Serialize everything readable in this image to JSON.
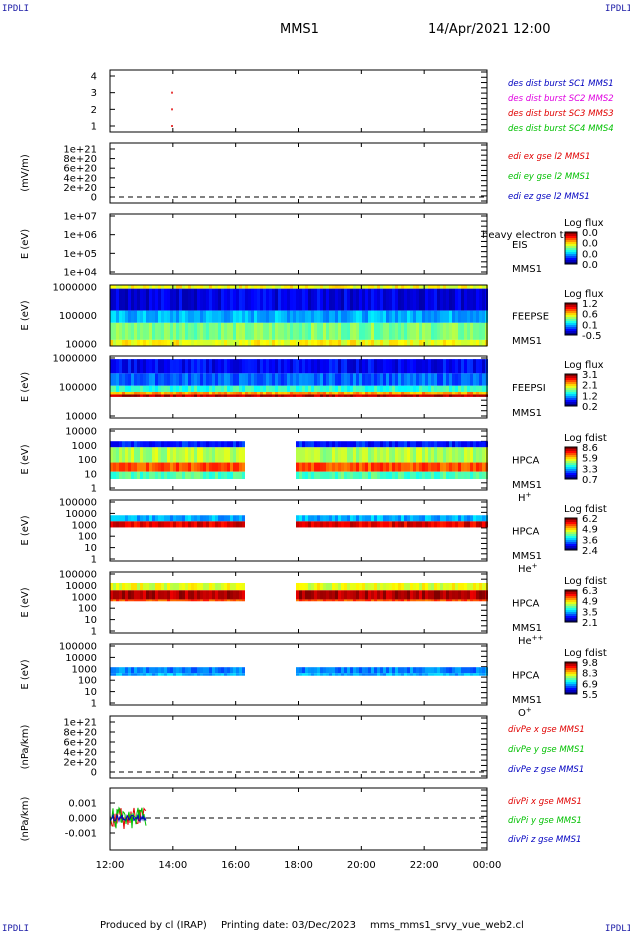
{
  "corners": {
    "tl": "IPDLI",
    "tr": "IPDLI",
    "bl": "IPDLI",
    "br": "IPDLI"
  },
  "header": {
    "spacecraft": "MMS1",
    "datetime": "14/Apr/2021 12:00"
  },
  "footer": {
    "producer": "Produced by cl (IRAP)",
    "print_date": "Printing date: 03/Dec/2023",
    "file": "mms_mms1_srvy_vue_web2.cl"
  },
  "colors": {
    "red": "#e00000",
    "green": "#00c000",
    "blue": "#0000c0",
    "magenta": "#e000e0"
  },
  "chart_data": {
    "type": "heatmap",
    "time_axis": {
      "range": [
        "12:00",
        "00:00"
      ],
      "ticks": [
        "12:00",
        "14:00",
        "16:00",
        "18:00",
        "20:00",
        "22:00",
        "00:00"
      ]
    },
    "panels": [
      {
        "id": "burst",
        "type": "scatter",
        "ylabel": "",
        "ylim": [
          0.5,
          4.5
        ],
        "ticks": [
          "4",
          "3",
          "2",
          "1"
        ],
        "legend": [
          {
            "text": "des dist burst SC1 MMS1",
            "color": "#0000c0"
          },
          {
            "text": "des dist burst SC2 MMS2",
            "color": "#e000e0"
          },
          {
            "text": "des dist burst SC3 MMS3",
            "color": "#e00000"
          },
          {
            "text": "des dist burst SC4 MMS4",
            "color": "#00c000"
          }
        ],
        "points": [
          {
            "t": 1.95,
            "y": 3
          },
          {
            "t": 1.95,
            "y": 2
          },
          {
            "t": 1.95,
            "y": 1
          }
        ]
      },
      {
        "id": "edi",
        "type": "line",
        "ylabel": "(mV/m)",
        "ticks": [
          "1e+21",
          "8e+20",
          "6e+20",
          "4e+20",
          "2e+20",
          "0"
        ],
        "legend": [
          {
            "text": "edi ex gse l2 MMS1",
            "color": "#e00000"
          },
          {
            "text": "edi ey gse l2 MMS1",
            "color": "#00c000"
          },
          {
            "text": "edi ez gse l2 MMS1",
            "color": "#0000c0"
          }
        ]
      },
      {
        "id": "eis",
        "type": "heatmap",
        "ylabel": "E (eV)",
        "ticks": [
          "1e+07",
          "1e+06",
          "1e+05",
          "1e+04"
        ],
        "instrument": "EIS",
        "instrument_note": "heavy electron to",
        "sc": "MMS1",
        "colorbar": {
          "title": "Log flux",
          "values": [
            "0.0",
            "0.0",
            "0.0",
            "0.0"
          ]
        }
      },
      {
        "id": "feepse",
        "type": "heatmap",
        "ylabel": "E (eV)",
        "ticks": [
          "1000000",
          "100000",
          "10000"
        ],
        "instrument": "FEEPSE",
        "sc": "MMS1",
        "colorbar": {
          "title": "Log flux",
          "values": [
            "1.2",
            "0.6",
            "0.1",
            "-0.5"
          ]
        }
      },
      {
        "id": "feepsi",
        "type": "heatmap",
        "ylabel": "E (eV)",
        "ticks": [
          "1000000",
          "100000",
          "10000"
        ],
        "instrument": "FEEPSI",
        "sc": "MMS1",
        "colorbar": {
          "title": "Log flux",
          "values": [
            "3.1",
            "2.1",
            "1.2",
            "0.2"
          ]
        }
      },
      {
        "id": "hpca_h",
        "type": "heatmap",
        "ylabel": "E (eV)",
        "ticks": [
          "10000",
          "1000",
          "100",
          "10",
          "1"
        ],
        "instrument": "HPCA",
        "sc": "MMS1",
        "species": "H",
        "charge": "+",
        "colorbar": {
          "title": "Log fdist",
          "values": [
            "8.6",
            "5.9",
            "3.3",
            "0.7"
          ]
        },
        "data_gap": [
          "16:15",
          "17:50"
        ]
      },
      {
        "id": "hpca_he1",
        "type": "heatmap",
        "ylabel": "E (eV)",
        "ticks": [
          "100000",
          "10000",
          "1000",
          "100",
          "10",
          "1"
        ],
        "instrument": "HPCA",
        "sc": "MMS1",
        "species": "He",
        "charge": "+",
        "colorbar": {
          "title": "Log fdist",
          "values": [
            "6.2",
            "4.9",
            "3.6",
            "2.4"
          ]
        },
        "data_gap": [
          "16:15",
          "17:50"
        ]
      },
      {
        "id": "hpca_he2",
        "type": "heatmap",
        "ylabel": "E (eV)",
        "ticks": [
          "100000",
          "10000",
          "1000",
          "100",
          "10",
          "1"
        ],
        "instrument": "HPCA",
        "sc": "MMS1",
        "species": "He",
        "charge": "++",
        "colorbar": {
          "title": "Log fdist",
          "values": [
            "6.3",
            "4.9",
            "3.5",
            "2.1"
          ]
        },
        "data_gap": [
          "16:15",
          "17:50"
        ]
      },
      {
        "id": "hpca_o",
        "type": "heatmap",
        "ylabel": "E (eV)",
        "ticks": [
          "100000",
          "10000",
          "1000",
          "100",
          "10",
          "1"
        ],
        "instrument": "HPCA",
        "sc": "MMS1",
        "species": "O",
        "charge": "+",
        "colorbar": {
          "title": "Log fdist",
          "values": [
            "9.8",
            "8.3",
            "6.9",
            "5.5"
          ]
        },
        "data_gap": [
          "16:15",
          "17:50"
        ]
      },
      {
        "id": "divpe",
        "type": "line",
        "ylabel": "(nPa/km)",
        "ticks": [
          "1e+21",
          "8e+20",
          "6e+20",
          "4e+20",
          "2e+20",
          "0"
        ],
        "legend": [
          {
            "text": "divPe x gse MMS1",
            "color": "#e00000"
          },
          {
            "text": "divPe y gse MMS1",
            "color": "#00c000"
          },
          {
            "text": "divPe z gse MMS1",
            "color": "#0000c0"
          }
        ]
      },
      {
        "id": "divpi",
        "type": "line",
        "ylabel": "(nPa/km)",
        "ticks": [
          "0.001",
          "0.000",
          "-0.001"
        ],
        "legend": [
          {
            "text": "divPi x gse MMS1",
            "color": "#e00000"
          },
          {
            "text": "divPi y gse MMS1",
            "color": "#00c000"
          },
          {
            "text": "divPi z gse MMS1",
            "color": "#0000c0"
          }
        ],
        "data_span": [
          "12:00",
          "13:10"
        ]
      }
    ]
  }
}
